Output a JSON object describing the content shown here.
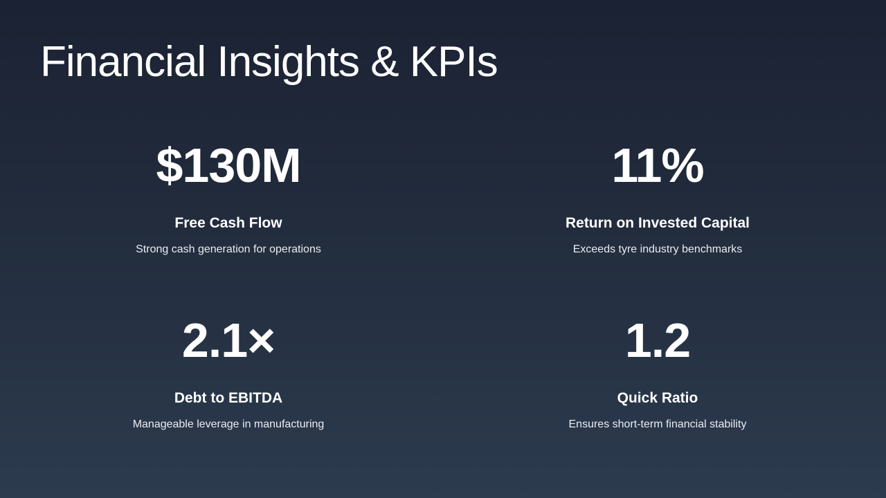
{
  "slide": {
    "title": "Financial Insights & KPIs",
    "kpis": [
      {
        "value": "$130M",
        "label": "Free Cash Flow",
        "description": "Strong cash generation for operations"
      },
      {
        "value": "11%",
        "label": "Return on Invested Capital",
        "description": "Exceeds tyre industry benchmarks"
      },
      {
        "value": "2.1×",
        "label": "Debt to EBITDA",
        "description": "Manageable leverage in manufacturing"
      },
      {
        "value": "1.2",
        "label": "Quick Ratio",
        "description": "Ensures short-term financial stability"
      }
    ]
  }
}
